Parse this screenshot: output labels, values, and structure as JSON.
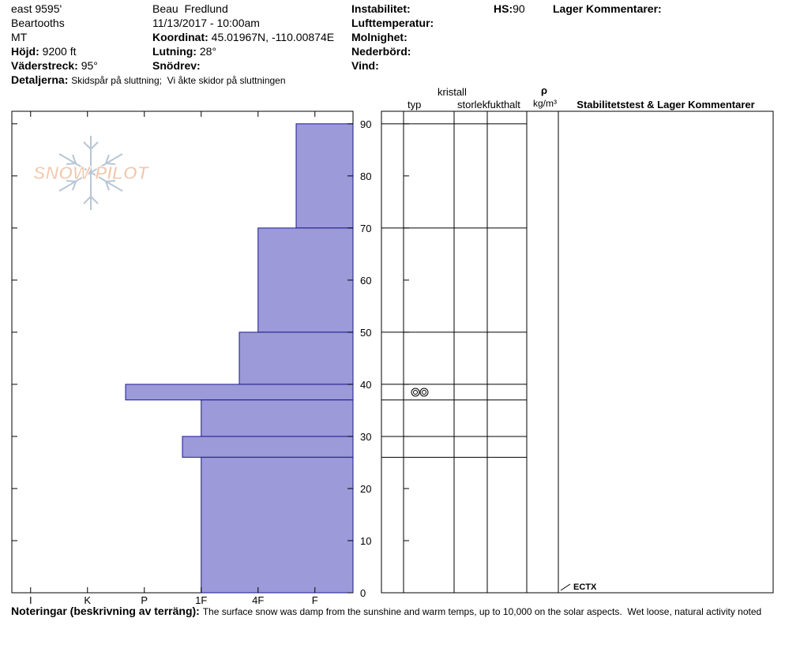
{
  "header": {
    "site": "east 9595'",
    "range": "Beartooths",
    "state": "MT",
    "elevation": {
      "label": "Höjd:",
      "value": "9200 ft"
    },
    "aspect": {
      "label": "Väderstreck:",
      "value": "95°"
    },
    "details": {
      "label": "Detaljerna:",
      "value": "Skidspår på sluttning;  Vi åkte skidor på sluttningen"
    },
    "observer": "Beau  Fredlund",
    "datetime": "11/13/2017 - 10:00am",
    "coordinates": {
      "label": "Koordinat:",
      "value": "45.01967N, -110.00874E"
    },
    "slope": {
      "label": "Lutning:",
      "value": "28°"
    },
    "wind_loading": "Snödrev:",
    "instability": "Instabilitet:",
    "air_temperature": "Lufttemperatur:",
    "sky": "Molnighet:",
    "precipitation": "Nederbörd:",
    "wind": "Vind:",
    "hs": {
      "label": "HS:",
      "value": "90"
    },
    "layer_comments": "Lager Kommentarer:"
  },
  "logo": "SNOW PILOT",
  "table_headers": {
    "crystal": "kristall",
    "type": "typ",
    "size": "storlek",
    "moisture": "fukthalt",
    "density_symbol": "ρ",
    "density_unit": "kg/m³",
    "stability": "Stabilitetstest & Lager Kommentarer"
  },
  "chart_data": {
    "type": "bar",
    "orientation": "horizontal",
    "color": "#9c9ad8",
    "layers": {
      "top": [
        90,
        70,
        50,
        40,
        37,
        30,
        26
      ],
      "bottom": [
        70,
        50,
        40,
        37,
        30,
        26,
        0
      ],
      "hardness": [
        1.33,
        2,
        2.33,
        4.33,
        3,
        3.33,
        3
      ]
    },
    "xlim": [
      6.33,
      0.33
    ],
    "xticks": [
      {
        "value": 6,
        "label": "I"
      },
      {
        "value": 5,
        "label": "K"
      },
      {
        "value": 4,
        "label": "P"
      },
      {
        "value": 3,
        "label": "1F"
      },
      {
        "value": 2,
        "label": "4F"
      },
      {
        "value": 1,
        "label": "F"
      }
    ],
    "ylim": [
      0,
      92.4
    ],
    "yticks": [
      0,
      10,
      20,
      30,
      40,
      50,
      60,
      70,
      80,
      90
    ],
    "annotation": "ECTX"
  },
  "notes": {
    "label": "Noteringar (beskrivning av terräng):",
    "text": "The surface snow was damp from the sunshine and warm temps, up to 10,000 on the solar aspects.  Wet loose, natural activity noted"
  }
}
